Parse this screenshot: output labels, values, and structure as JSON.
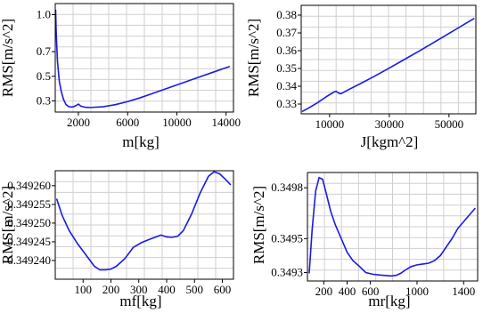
{
  "chart_data": [
    {
      "type": "line",
      "xlabel": "m[kg]",
      "ylabel": "RMS[m/s^2]",
      "xlim": [
        120,
        14600
      ],
      "ylim": [
        0.21,
        1.09
      ],
      "xticks": [
        2000,
        6000,
        10000,
        14000
      ],
      "xtick_labels": [
        "2000",
        "6000",
        "10000",
        "14000"
      ],
      "yticks": [
        0.3,
        0.5,
        0.7,
        1.0
      ],
      "ytick_labels": [
        "0.3",
        "0.5",
        "0.7",
        "1.0"
      ],
      "grid": true,
      "series": [
        {
          "x": [
            150,
            200,
            300,
            450,
            600,
            800,
            1000,
            1200,
            1400,
            1600,
            1800,
            2000,
            2200,
            2600,
            3000,
            4000,
            5000,
            6000,
            7000,
            8000,
            9000,
            10000,
            11000,
            12000,
            13000,
            14300
          ],
          "y": [
            1.04,
            0.85,
            0.62,
            0.46,
            0.38,
            0.31,
            0.27,
            0.255,
            0.25,
            0.253,
            0.262,
            0.274,
            0.258,
            0.248,
            0.247,
            0.253,
            0.27,
            0.295,
            0.325,
            0.36,
            0.395,
            0.43,
            0.465,
            0.5,
            0.535,
            0.58
          ]
        }
      ]
    },
    {
      "type": "line",
      "xlabel": "J[kgm^2]",
      "ylabel": "RMS[m/s^2]",
      "xlim": [
        500,
        59000
      ],
      "ylim": [
        0.3245,
        0.3855
      ],
      "xticks": [
        10000,
        30000,
        50000
      ],
      "xtick_labels": [
        "10000",
        "30000",
        "50000"
      ],
      "yticks": [
        0.33,
        0.34,
        0.35,
        0.36,
        0.37,
        0.38
      ],
      "ytick_labels": [
        "0.33",
        "0.34",
        "0.35",
        "0.36",
        "0.37",
        "0.38"
      ],
      "grid": true,
      "series": [
        {
          "x": [
            800,
            3000,
            6000,
            9000,
            11500,
            12200,
            13000,
            13800,
            16000,
            20000,
            25000,
            30000,
            35000,
            40000,
            45000,
            50000,
            55000,
            58500
          ],
          "y": [
            0.3258,
            0.3278,
            0.3308,
            0.3342,
            0.3368,
            0.3372,
            0.3362,
            0.3358,
            0.3378,
            0.3412,
            0.3456,
            0.3502,
            0.355,
            0.3598,
            0.3647,
            0.3697,
            0.3747,
            0.3782
          ]
        }
      ]
    },
    {
      "type": "line",
      "xlabel": "mf[kg]",
      "ylabel": "RMS[m/s^2]",
      "xlim": [
        0,
        640
      ],
      "ylim": [
        0.349235,
        0.349264
      ],
      "xticks": [
        100,
        200,
        300,
        400,
        500,
        600
      ],
      "xtick_labels": [
        "100",
        "200",
        "300",
        "400",
        "500",
        "600"
      ],
      "yticks": [
        0.34924,
        0.349245,
        0.34925,
        0.349255,
        0.34926
      ],
      "ytick_labels": [
        "0.349240",
        "0.349245",
        "0.349250",
        "0.349255",
        "0.349260"
      ],
      "grid": true,
      "series": [
        {
          "x": [
            5,
            25,
            50,
            80,
            110,
            140,
            160,
            180,
            200,
            220,
            250,
            280,
            310,
            350,
            380,
            400,
            420,
            440,
            460,
            490,
            520,
            550,
            570,
            590,
            610,
            630
          ],
          "y": [
            0.3492565,
            0.349252,
            0.349248,
            0.3492445,
            0.3492415,
            0.3492385,
            0.3492375,
            0.3492375,
            0.3492377,
            0.3492385,
            0.3492405,
            0.3492435,
            0.3492448,
            0.349246,
            0.3492468,
            0.3492463,
            0.3492462,
            0.3492465,
            0.349248,
            0.3492525,
            0.349258,
            0.3492625,
            0.3492637,
            0.3492632,
            0.3492618,
            0.3492602
          ]
        }
      ]
    },
    {
      "type": "line",
      "xlabel": "mr[kg]",
      "ylabel": "RMS[m/s^2]",
      "xlim": [
        60,
        1520
      ],
      "ylim": [
        0.34925,
        0.34989
      ],
      "xticks": [
        200,
        400,
        600,
        1000,
        1400
      ],
      "xtick_labels": [
        "200",
        "400",
        "600",
        "1000",
        "1400"
      ],
      "yticks": [
        0.3493,
        0.3495,
        0.3498
      ],
      "ytick_labels": [
        "0.3493",
        "0.3495",
        "0.3498"
      ],
      "grid": true,
      "series": [
        {
          "x": [
            75,
            100,
            130,
            160,
            190,
            220,
            260,
            300,
            350,
            400,
            450,
            500,
            560,
            620,
            680,
            740,
            780,
            820,
            860,
            900,
            950,
            1000,
            1050,
            1100,
            1150,
            1200,
            1250,
            1300,
            1350,
            1400,
            1450,
            1500
          ],
          "y": [
            0.349295,
            0.34955,
            0.34978,
            0.34986,
            0.34985,
            0.34977,
            0.34966,
            0.34958,
            0.3495,
            0.34942,
            0.34937,
            0.34934,
            0.3493,
            0.34929,
            0.349285,
            0.349282,
            0.34928,
            0.349283,
            0.349295,
            0.349315,
            0.349335,
            0.349345,
            0.34935,
            0.349355,
            0.34937,
            0.3494,
            0.34945,
            0.3495,
            0.34956,
            0.3496,
            0.34964,
            0.34968
          ]
        }
      ]
    }
  ]
}
